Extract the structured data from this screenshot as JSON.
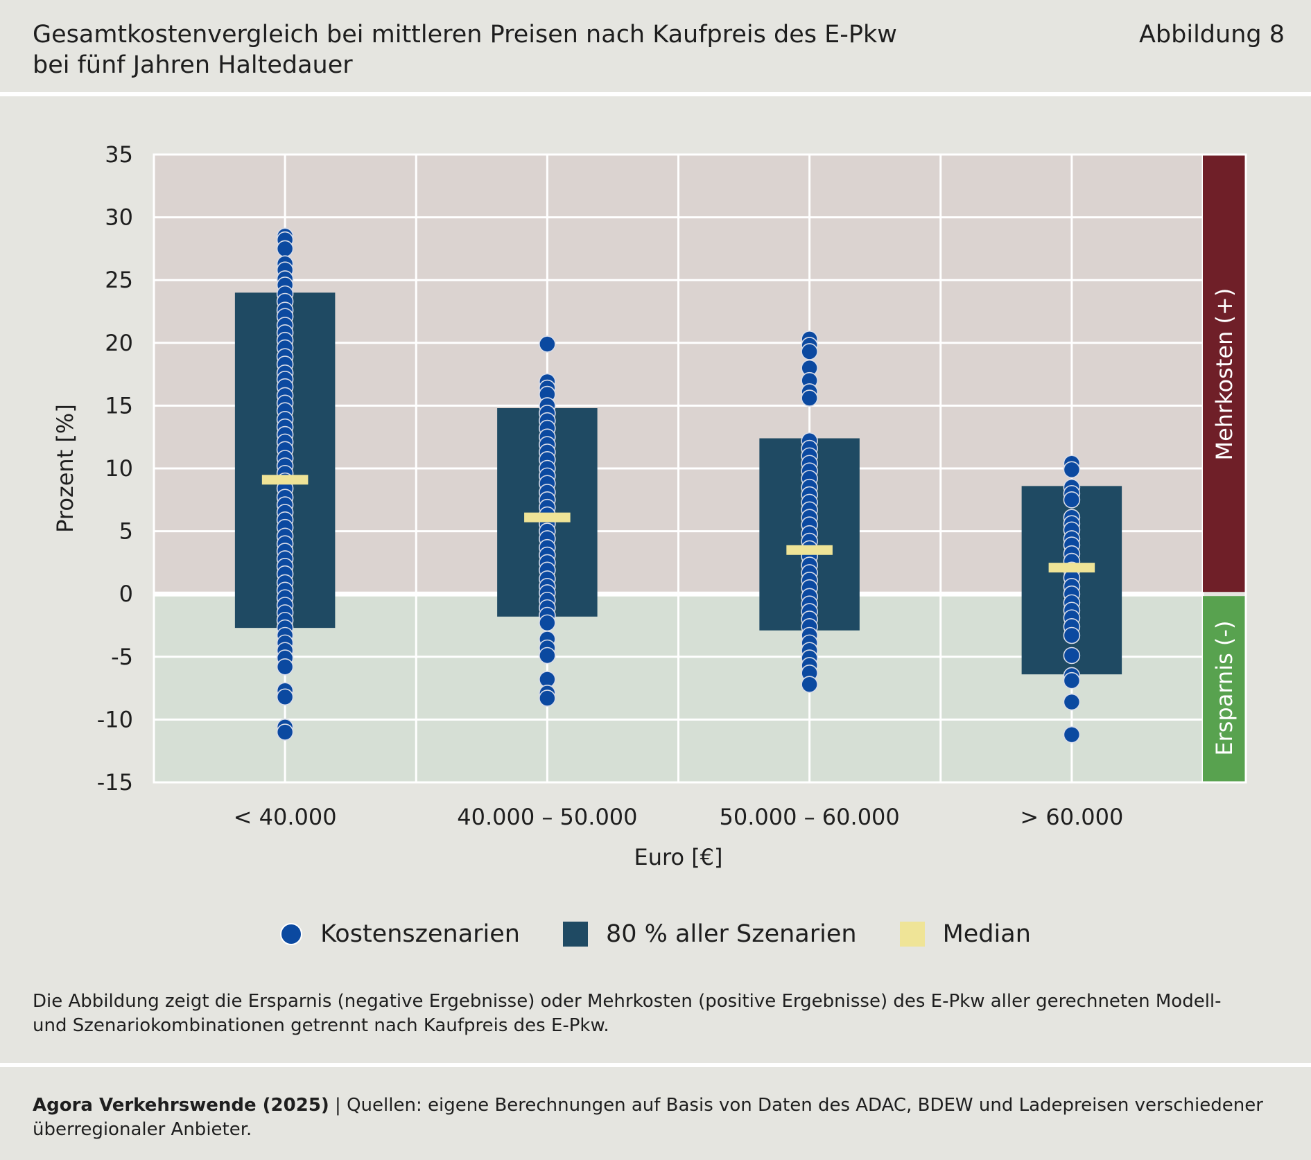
{
  "header": {
    "title_line1": "Gesamtkostenvergleich bei mittleren Preisen nach Kaufpreis des E-Pkw",
    "title_line2": "bei fünf Jahren Haltedauer",
    "figure_label": "Abbildung 8"
  },
  "colors": {
    "positive_zone": "#dbd3d0",
    "negative_zone": "#d6dfd5",
    "mehrkosten_bar": "#6f1f28",
    "ersparnis_bar": "#58a24f",
    "box": "#1f4a63",
    "dot": "#0b49a0",
    "median": "#efe497"
  },
  "chart_data": {
    "type": "box-strip",
    "title": "Gesamtkostenvergleich bei mittleren Preisen nach Kaufpreis des E-Pkw bei fünf Jahren Haltedauer",
    "xlabel": "Euro [€]",
    "ylabel": "Prozent [%]",
    "ylim": [
      -15,
      35
    ],
    "yticks": [
      35,
      30,
      25,
      20,
      15,
      10,
      5,
      0,
      -5,
      -10,
      -15
    ],
    "ytick_labels": [
      "35",
      "30",
      "25",
      "20",
      "15",
      "10",
      "5",
      "0",
      "-5",
      "-10",
      "-15"
    ],
    "grid": true,
    "zones": {
      "positive_label": "Mehrkosten (+)",
      "negative_label": "Ersparnis (-)"
    },
    "categories": [
      "< 40.000",
      "40.000 – 50.000",
      "50.000 – 60.000",
      "> 60.000"
    ],
    "box_80pct": [
      {
        "low": -2.7,
        "high": 24.0
      },
      {
        "low": -1.8,
        "high": 14.8
      },
      {
        "low": -2.9,
        "high": 12.4
      },
      {
        "low": -6.4,
        "high": 8.6
      }
    ],
    "median": [
      9.1,
      6.1,
      3.5,
      2.1
    ],
    "scenarios": [
      [
        28.5,
        28.2,
        27.5,
        26.3,
        25.8,
        25.1,
        24.6,
        23.9,
        23.3,
        22.6,
        22.1,
        21.4,
        20.8,
        20.2,
        19.6,
        18.9,
        18.3,
        17.6,
        17.1,
        16.5,
        15.8,
        15.2,
        14.6,
        13.9,
        13.3,
        12.7,
        12.1,
        11.5,
        10.8,
        10.2,
        9.6,
        9.0,
        8.4,
        7.7,
        7.1,
        6.5,
        5.9,
        5.3,
        4.6,
        4.0,
        3.4,
        2.8,
        2.2,
        1.6,
        0.9,
        0.3,
        -0.3,
        -0.9,
        -1.5,
        -2.1,
        -2.7,
        -3.3,
        -3.9,
        -4.5,
        -5.1,
        -5.8,
        -7.7,
        -8.2,
        -10.6,
        -11.0
      ],
      [
        19.9,
        16.9,
        16.4,
        15.9,
        15.0,
        14.4,
        13.8,
        13.2,
        12.5,
        11.9,
        11.3,
        10.7,
        10.0,
        9.4,
        8.8,
        8.1,
        7.5,
        6.9,
        6.3,
        5.6,
        5.0,
        4.4,
        3.7,
        3.1,
        2.5,
        1.9,
        1.2,
        0.6,
        0.1,
        -0.5,
        -1.1,
        -1.7,
        -2.3,
        -3.6,
        -4.3,
        -4.9,
        -6.8,
        -7.9,
        -8.3
      ],
      [
        20.3,
        19.8,
        19.3,
        18.0,
        17.0,
        16.1,
        15.6,
        12.2,
        11.6,
        11.0,
        10.4,
        9.8,
        9.2,
        8.5,
        7.9,
        7.3,
        6.7,
        6.1,
        5.5,
        4.8,
        4.2,
        3.6,
        3.0,
        2.3,
        1.7,
        1.1,
        0.5,
        -0.2,
        -0.8,
        -1.4,
        -2.0,
        -2.6,
        -3.3,
        -3.9,
        -4.5,
        -5.1,
        -5.7,
        -6.3,
        -7.2
      ],
      [
        10.4,
        9.9,
        8.5,
        8.0,
        7.5,
        6.1,
        5.6,
        5.1,
        4.4,
        3.9,
        3.2,
        2.6,
        1.9,
        1.3,
        0.6,
        0.0,
        -0.7,
        -1.3,
        -1.9,
        -2.6,
        -3.3,
        -4.9,
        -6.5,
        -6.9,
        -8.6,
        -11.2
      ]
    ],
    "legend": [
      "Kostenszenarien",
      "80 % aller Szenarien",
      "Median"
    ]
  },
  "legend": {
    "dots_label": "Kostenszenarien",
    "box_label": "80 % aller Szenarien",
    "median_label": "Median"
  },
  "note": {
    "line1": "Die Abbildung zeigt die Ersparnis (negative Ergebnisse) oder Mehrkosten (positive Ergebnisse) des E-Pkw aller gerechneten Modell-",
    "line2": "und Szenariokombinationen getrennt nach Kaufpreis des E-Pkw."
  },
  "footer": {
    "source_bold": "Agora Verkehrswende (2025)",
    "source_sep": " | ",
    "source_text": "Quellen: eigene Berechnungen auf Basis von Daten des ADAC, BDEW und Ladepreisen verschiedener",
    "source_line2": "überregionaler Anbieter."
  }
}
